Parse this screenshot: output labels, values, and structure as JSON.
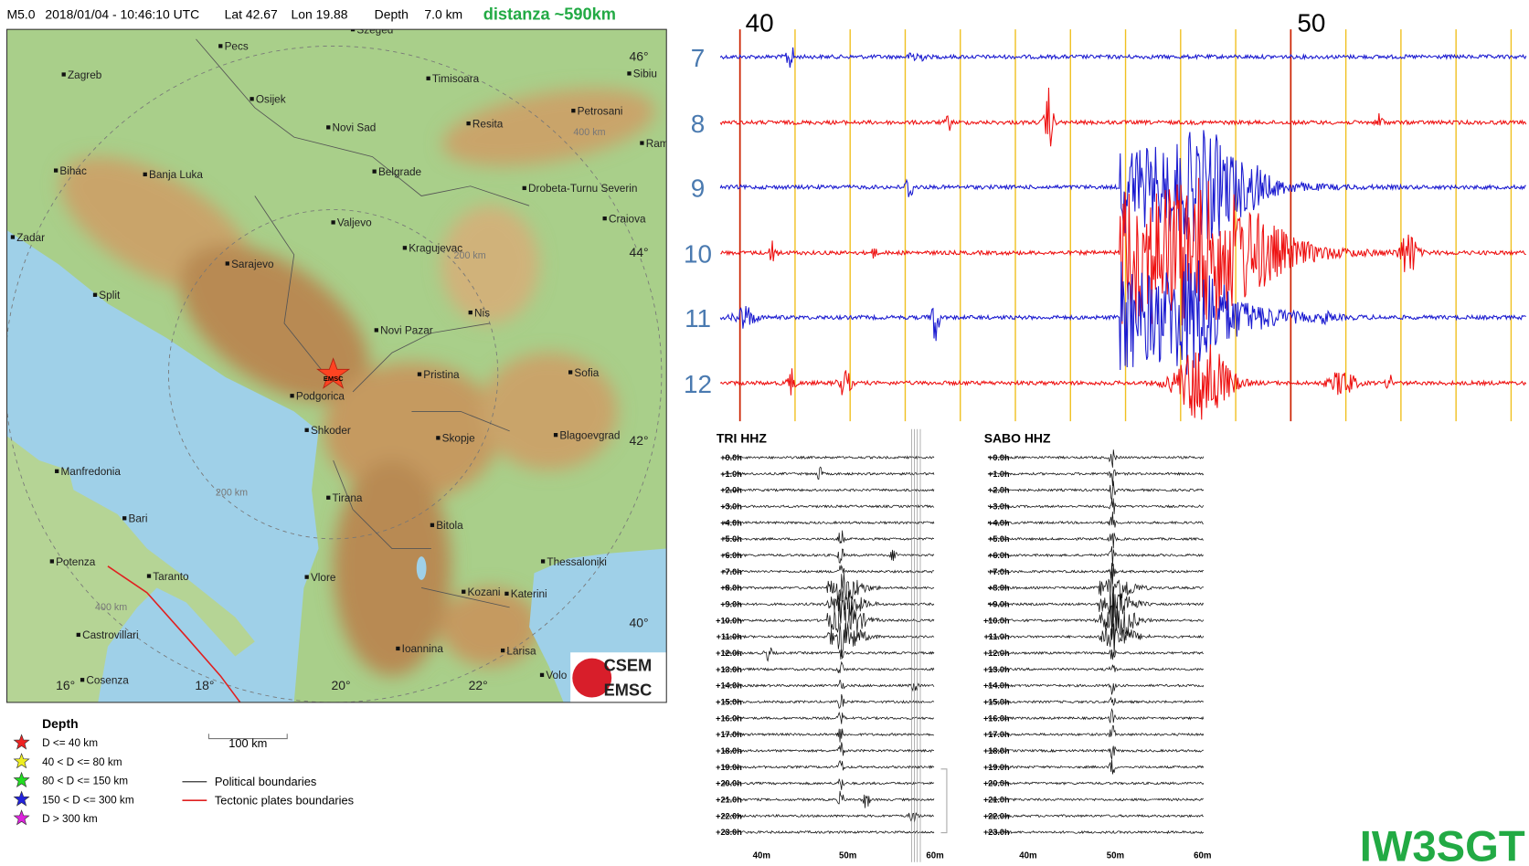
{
  "header": {
    "magnitude": "M5.0",
    "time": "2018/01/04 - 10:46:10 UTC",
    "lat": "Lat 42.67",
    "lon": "Lon 19.88",
    "depth": "Depth",
    "depth_value": "7.0 km",
    "distance": "distanza ~590km"
  },
  "map": {
    "cities": [
      "Pecs",
      "Szeged",
      "Zagreb",
      "Timisoara",
      "Sibiu",
      "Osijek",
      "Novi Sad",
      "Resita",
      "Petrosani",
      "Ram",
      "Bihac",
      "Banja Luka",
      "Belgrade",
      "Drobeta-Turnu Severin",
      "Craiova",
      "Valjevo",
      "Zadar",
      "Kragujevac",
      "Sarajevo",
      "Split",
      "Nis",
      "Novi Pazar",
      "Pristina",
      "Sofia",
      "Podgorica",
      "Shkoder",
      "Skopje",
      "Blagoevgrad",
      "Manfredonia",
      "Bari",
      "Tirana",
      "Bitola",
      "Potenza",
      "Taranto",
      "Thessaloniki",
      "Vlore",
      "Kozani",
      "Katerini",
      "Castrovillari",
      "Ioannina",
      "Larisa",
      "Cosenza",
      "Volo"
    ],
    "lat_labels": [
      "46°",
      "44°",
      "42°",
      "40°"
    ],
    "lon_labels": [
      "16°",
      "18°",
      "20°",
      "22°"
    ],
    "distance_labels": [
      "400 km",
      "200 km",
      "200 km",
      "400 km"
    ],
    "epicenter_label": "EMSC",
    "logo": [
      "CSEM",
      "EMSC"
    ]
  },
  "legend": {
    "title": "Depth",
    "depth_classes": [
      "D <= 40 km",
      "40 < D <= 80 km",
      "80 < D <= 150 km",
      "150 < D <= 300 km",
      "D > 300 km"
    ],
    "scale": "100 km",
    "lines": [
      "Political boundaries",
      "Tectonic plates boundaries"
    ]
  },
  "helicorder": {
    "minute_labels": [
      "40",
      "50"
    ],
    "row_labels": [
      "7",
      "8",
      "9",
      "10",
      "11",
      "12"
    ]
  },
  "drums": [
    {
      "title": "TRI HHZ",
      "hour_labels": [
        "+0.0h",
        "+1.0h",
        "+2.0h",
        "+3.0h",
        "+4.0h",
        "+5.0h",
        "+6.0h",
        "+7.0h",
        "+8.0h",
        "+9.0h",
        "+10.0h",
        "+11.0h",
        "+12.0h",
        "+13.0h",
        "+14.0h",
        "+15.0h",
        "+16.0h",
        "+17.0h",
        "+18.0h",
        "+19.0h",
        "+20.0h",
        "+21.0h",
        "+22.0h",
        "+23.0h"
      ],
      "minute_labels": [
        "40m",
        "50m",
        "60m"
      ]
    },
    {
      "title": "SABO HHZ",
      "hour_labels": [
        "+0.0h",
        "+1.0h",
        "+2.0h",
        "+3.0h",
        "+4.0h",
        "+5.0h",
        "+6.0h",
        "+7.0h",
        "+8.0h",
        "+9.0h",
        "+10.0h",
        "+11.0h",
        "+12.0h",
        "+13.0h",
        "+14.0h",
        "+15.0h",
        "+16.0h",
        "+17.0h",
        "+18.0h",
        "+19.0h",
        "+20.0h",
        "+21.0h",
        "+22.0h",
        "+23.0h"
      ],
      "minute_labels": [
        "40m",
        "50m",
        "60m"
      ]
    }
  ],
  "callsign": "IW3SGT"
}
